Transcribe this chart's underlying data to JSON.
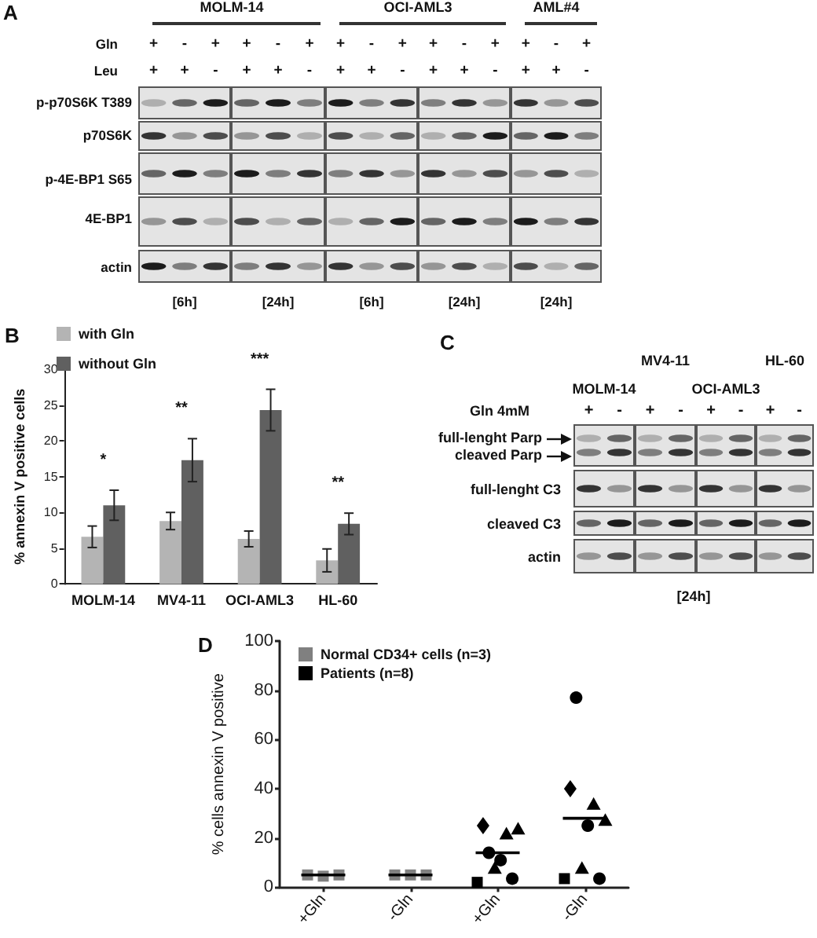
{
  "chart_data": [
    {
      "type": "other",
      "title": "A",
      "categories": [
        "MOLM-14",
        "OCI-AML3",
        "AML#4"
      ],
      "y_categories": [
        "Gln",
        "Leu",
        "p-p70S6K T389",
        "p70S6K",
        "p-4E-BP1 S65",
        "4E-BP1",
        "actin"
      ],
      "cell_labels": [
        [
          "+",
          "-",
          "+",
          "+",
          "-",
          "+",
          "+",
          "-",
          "+",
          "+",
          "-",
          "+",
          "+",
          "-",
          "+"
        ],
        [
          "+",
          "+",
          "-",
          "+",
          "+",
          "-",
          "+",
          "+",
          "-",
          "+",
          "+",
          "-",
          "+",
          "+",
          "-"
        ]
      ],
      "annotations": [
        "[6h]",
        "[24h]",
        "[6h]",
        "[24h]",
        "[24h]"
      ]
    },
    {
      "type": "bar",
      "title": "B",
      "ylabel": "% annexin V positive cells",
      "categories": [
        "MOLM-14",
        "MV4-11",
        "OCI-AML3",
        "HL-60"
      ],
      "series": [
        {
          "name": "with Gln",
          "color": "#b4b4b4",
          "values": [
            6.6,
            8.8,
            6.3,
            3.3
          ],
          "errors": [
            1.5,
            1.2,
            1.1,
            1.6
          ]
        },
        {
          "name": "without Gln",
          "color": "#606060",
          "values": [
            11,
            17.3,
            24.3,
            8.4
          ],
          "errors": [
            2.1,
            3,
            2.9,
            1.5
          ]
        }
      ],
      "ylim": [
        0,
        30
      ],
      "yticks": [
        0,
        5,
        10,
        15,
        20,
        25,
        30
      ],
      "legend": "top left",
      "annotations": [
        {
          "text": "*",
          "x": "MOLM-14",
          "y": 13.1
        },
        {
          "text": "**",
          "x": "MV4-11",
          "y": 20.3
        },
        {
          "text": "***",
          "x": "OCI-AML3",
          "y": 27.2
        },
        {
          "text": "**",
          "x": "HL-60",
          "y": 9.9
        }
      ]
    },
    {
      "type": "other",
      "title": "C",
      "categories": [
        "MOLM-14",
        "MV4-11",
        "OCI-AML3",
        "HL-60"
      ],
      "y_categories": [
        "Gln 4mM",
        "full-lenght Parp",
        "cleaved Parp",
        "full-lenght C3",
        "cleaved C3",
        "actin"
      ],
      "cell_labels": [
        [
          "+",
          "-",
          "+",
          "-",
          "+",
          "-",
          "+",
          "-"
        ]
      ],
      "annotations": [
        "[24h]"
      ]
    },
    {
      "type": "scatter",
      "title": "D",
      "ylabel": "% cells annexin V positive",
      "categories": [
        "+Gln",
        "-Gln",
        "+Gln",
        "-Gln"
      ],
      "series": [
        {
          "name": "Normal CD34+ cells (n=3)",
          "color": "#808080",
          "marker": "square",
          "values": [
            5,
            5,
            null,
            null
          ]
        },
        {
          "color": "#808080",
          "marker": "square",
          "values": [
            4.5,
            5,
            null,
            null
          ]
        },
        {
          "color": "#808080",
          "marker": "square",
          "values": [
            5,
            5,
            null,
            null
          ]
        },
        {
          "name": "Patients (n=8)",
          "color": "#000000",
          "marker": "square",
          "values": [
            null,
            null,
            2,
            3.5
          ]
        },
        {
          "color": "#000000",
          "marker": "diamond",
          "values": [
            null,
            null,
            25,
            40
          ]
        },
        {
          "color": "#000000",
          "marker": "circle",
          "values": [
            null,
            null,
            14,
            77
          ]
        },
        {
          "color": "#000000",
          "marker": "triangle",
          "values": [
            null,
            null,
            8,
            8
          ]
        },
        {
          "color": "#000000",
          "marker": "circle",
          "values": [
            null,
            null,
            11,
            25
          ]
        },
        {
          "color": "#000000",
          "marker": "triangle",
          "values": [
            null,
            null,
            22,
            34
          ]
        },
        {
          "color": "#000000",
          "marker": "circle",
          "values": [
            null,
            null,
            3.5,
            3.5
          ]
        },
        {
          "color": "#000000",
          "marker": "triangle",
          "values": [
            null,
            null,
            24,
            27.5
          ]
        },
        {
          "type": "box",
          "color": "#000000",
          "boxes": [
            {
              "low": 5,
              "q1": 5,
              "median": 5,
              "q3": 5,
              "high": 5
            },
            {
              "low": 5,
              "q1": 5,
              "median": 5,
              "q3": 5,
              "high": 5
            },
            {
              "low": 14,
              "q1": 14,
              "median": 14,
              "q3": 14,
              "high": 14
            },
            {
              "low": 28,
              "q1": 28,
              "median": 28,
              "q3": 28,
              "high": 28
            }
          ]
        }
      ],
      "ylim": [
        0,
        100
      ],
      "yticks": [
        0,
        20,
        40,
        60,
        80,
        100
      ],
      "legend": "top left"
    }
  ]
}
